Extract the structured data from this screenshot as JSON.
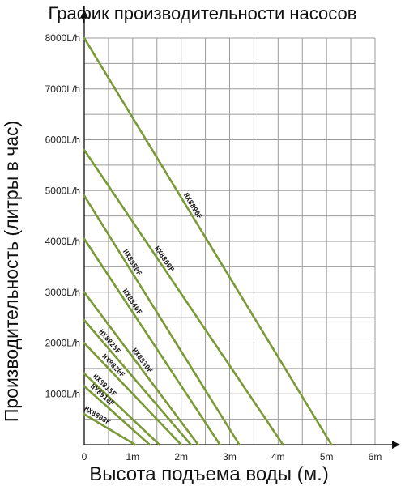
{
  "chart_data": {
    "type": "line",
    "title": "График производительности насосов",
    "xlabel": "Высота подъема воды (м.)",
    "ylabel": "Производительность (литры в час)",
    "xlim": [
      0,
      6
    ],
    "ylim": [
      0,
      8000
    ],
    "x_ticks": [
      "0",
      "1m",
      "2m",
      "3m",
      "4m",
      "5m",
      "6m"
    ],
    "y_ticks": [
      "1000L/h",
      "2000L/h",
      "3000L/h",
      "4000L/h",
      "5000L/h",
      "6000L/h",
      "7000L/h",
      "8000L/h"
    ],
    "grid": true,
    "line_color": "#7a9a36",
    "series": [
      {
        "name": "HX8890F",
        "x": [
          0,
          5.1
        ],
        "y": [
          8000,
          0
        ]
      },
      {
        "name": "HX8860F",
        "x": [
          0,
          4.1
        ],
        "y": [
          5800,
          0
        ]
      },
      {
        "name": "HX8850F",
        "x": [
          0,
          3.2
        ],
        "y": [
          4900,
          0
        ]
      },
      {
        "name": "HX8840F",
        "x": [
          0,
          2.8
        ],
        "y": [
          4050,
          0
        ]
      },
      {
        "name": "HX8830F",
        "x": [
          0,
          2.35
        ],
        "y": [
          3000,
          0
        ]
      },
      {
        "name": "HX8825F",
        "x": [
          0,
          2.2
        ],
        "y": [
          2450,
          0
        ]
      },
      {
        "name": "HX8820F",
        "x": [
          0,
          2.0
        ],
        "y": [
          2000,
          0
        ]
      },
      {
        "name": "HX8815F",
        "x": [
          0,
          1.55
        ],
        "y": [
          1400,
          0
        ]
      },
      {
        "name": "HX8910F",
        "x": [
          0,
          1.35
        ],
        "y": [
          1150,
          0
        ]
      },
      {
        "name": "HX8808F",
        "x": [
          0,
          1.05
        ],
        "y": [
          600,
          0
        ]
      }
    ]
  }
}
